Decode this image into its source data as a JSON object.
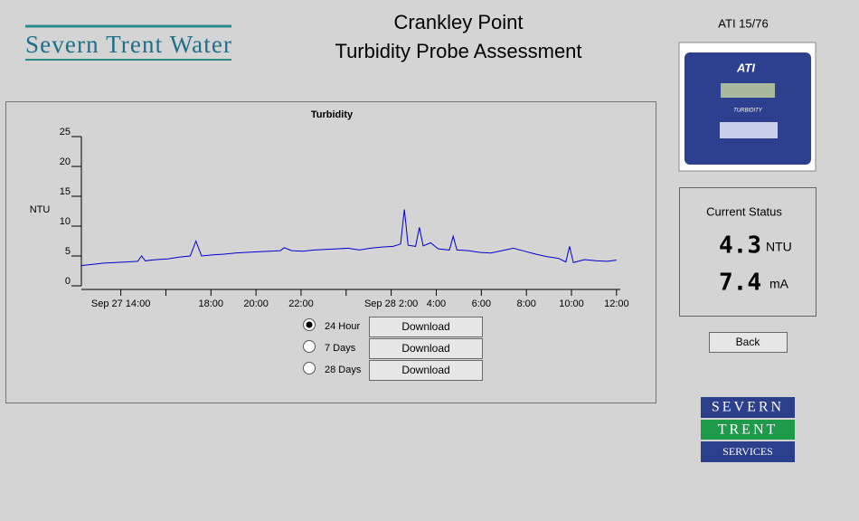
{
  "header": {
    "logo": "Severn Trent Water",
    "title": "Crankley Point",
    "subtitle": "Turbidity Probe Assessment",
    "device_id": "ATI 15/76"
  },
  "device": {
    "brand": "ATI",
    "label": "TURBIDITY"
  },
  "chart_data": {
    "type": "line",
    "title": "Turbidity",
    "y_label": "NTU",
    "color": "#0000cc",
    "ylim": [
      0,
      25
    ],
    "yticks": [
      0,
      5,
      10,
      15,
      20,
      25
    ],
    "xlim": [
      "Sep 27 12:15",
      "Sep 28 12:10"
    ],
    "xticks": [
      "Sep 27 14:00",
      {
        "value": "Sep 27 16:00",
        "label": null
      },
      {
        "value": "Sep 27 18:00",
        "label": "18:00"
      },
      {
        "value": "Sep 27 20:00",
        "label": "20:00"
      },
      {
        "value": "Sep 27 22:00",
        "label": "22:00"
      },
      {
        "value": "Sep 28 0:00",
        "label": null
      },
      "Sep 28 2:00",
      {
        "value": "Sep 28 4:00",
        "label": "4:00"
      },
      {
        "value": "Sep 28 6:00",
        "label": "6:00"
      },
      {
        "value": "Sep 28 8:00",
        "label": "8:00"
      },
      {
        "value": "Sep 28 10:00",
        "label": "10:00"
      },
      {
        "value": "Sep 28 12:00",
        "label": "12:00"
      }
    ],
    "x": [
      "Sep 27 12:15",
      "Sep 27 12:45",
      "Sep 27 13:15",
      "Sep 27 13:45",
      "Sep 27 14:15",
      "Sep 27 14:45",
      "Sep 27 14:55",
      "Sep 27 15:05",
      "Sep 27 15:35",
      "Sep 27 16:05",
      "Sep 27 16:35",
      "Sep 27 17:05",
      "Sep 27 17:20",
      "Sep 27 17:35",
      "Sep 27 18:05",
      "Sep 27 18:35",
      "Sep 27 19:05",
      "Sep 27 19:35",
      "Sep 27 20:05",
      "Sep 27 20:35",
      "Sep 27 21:05",
      "Sep 27 21:15",
      "Sep 27 21:35",
      "Sep 27 22:05",
      "Sep 27 22:35",
      "Sep 27 23:05",
      "Sep 27 23:35",
      "Sep 28 0:05",
      "Sep 28 0:35",
      "Sep 28 1:05",
      "Sep 28 1:35",
      "Sep 28 2:05",
      "Sep 28 2:25",
      "Sep 28 2:35",
      "Sep 28 2:45",
      "Sep 28 3:05",
      "Sep 28 3:15",
      "Sep 28 3:25",
      "Sep 28 3:45",
      "Sep 28 4:05",
      "Sep 28 4:35",
      "Sep 28 4:45",
      "Sep 28 4:55",
      "Sep 28 5:25",
      "Sep 28 5:55",
      "Sep 28 6:25",
      "Sep 28 6:55",
      "Sep 28 7:25",
      "Sep 28 7:55",
      "Sep 28 8:25",
      "Sep 28 8:55",
      "Sep 28 9:25",
      "Sep 28 9:45",
      "Sep 28 9:55",
      "Sep 28 10:05",
      "Sep 28 10:35",
      "Sep 28 11:05",
      "Sep 28 11:35",
      "Sep 28 12:00"
    ],
    "values": [
      3.4,
      3.6,
      3.8,
      3.9,
      4.0,
      4.1,
      5.0,
      4.2,
      4.4,
      4.5,
      4.8,
      5.0,
      7.5,
      5.0,
      5.2,
      5.3,
      5.5,
      5.6,
      5.7,
      5.8,
      5.9,
      6.4,
      5.9,
      5.8,
      6.0,
      6.1,
      6.2,
      6.3,
      6.0,
      6.3,
      6.5,
      6.6,
      7.0,
      12.8,
      6.8,
      6.6,
      9.8,
      6.7,
      7.2,
      6.2,
      6.0,
      8.3,
      6.0,
      5.9,
      5.6,
      5.5,
      5.9,
      6.3,
      5.8,
      5.3,
      4.9,
      4.6,
      4.0,
      6.6,
      3.9,
      4.4,
      4.2,
      4.1,
      4.3
    ]
  },
  "controls": {
    "options": [
      "24 Hour",
      "7 Days",
      "28 Days"
    ],
    "download": "Download",
    "back": "Back"
  },
  "status": {
    "title": "Current Status",
    "ntu_value": 4.3,
    "ntu_unit": "NTU",
    "ma_value": 7.4,
    "ma_unit": "mA"
  },
  "footer_logo": {
    "line1": "SEVERN",
    "line2": "TRENT",
    "line3": "SERVICES"
  }
}
